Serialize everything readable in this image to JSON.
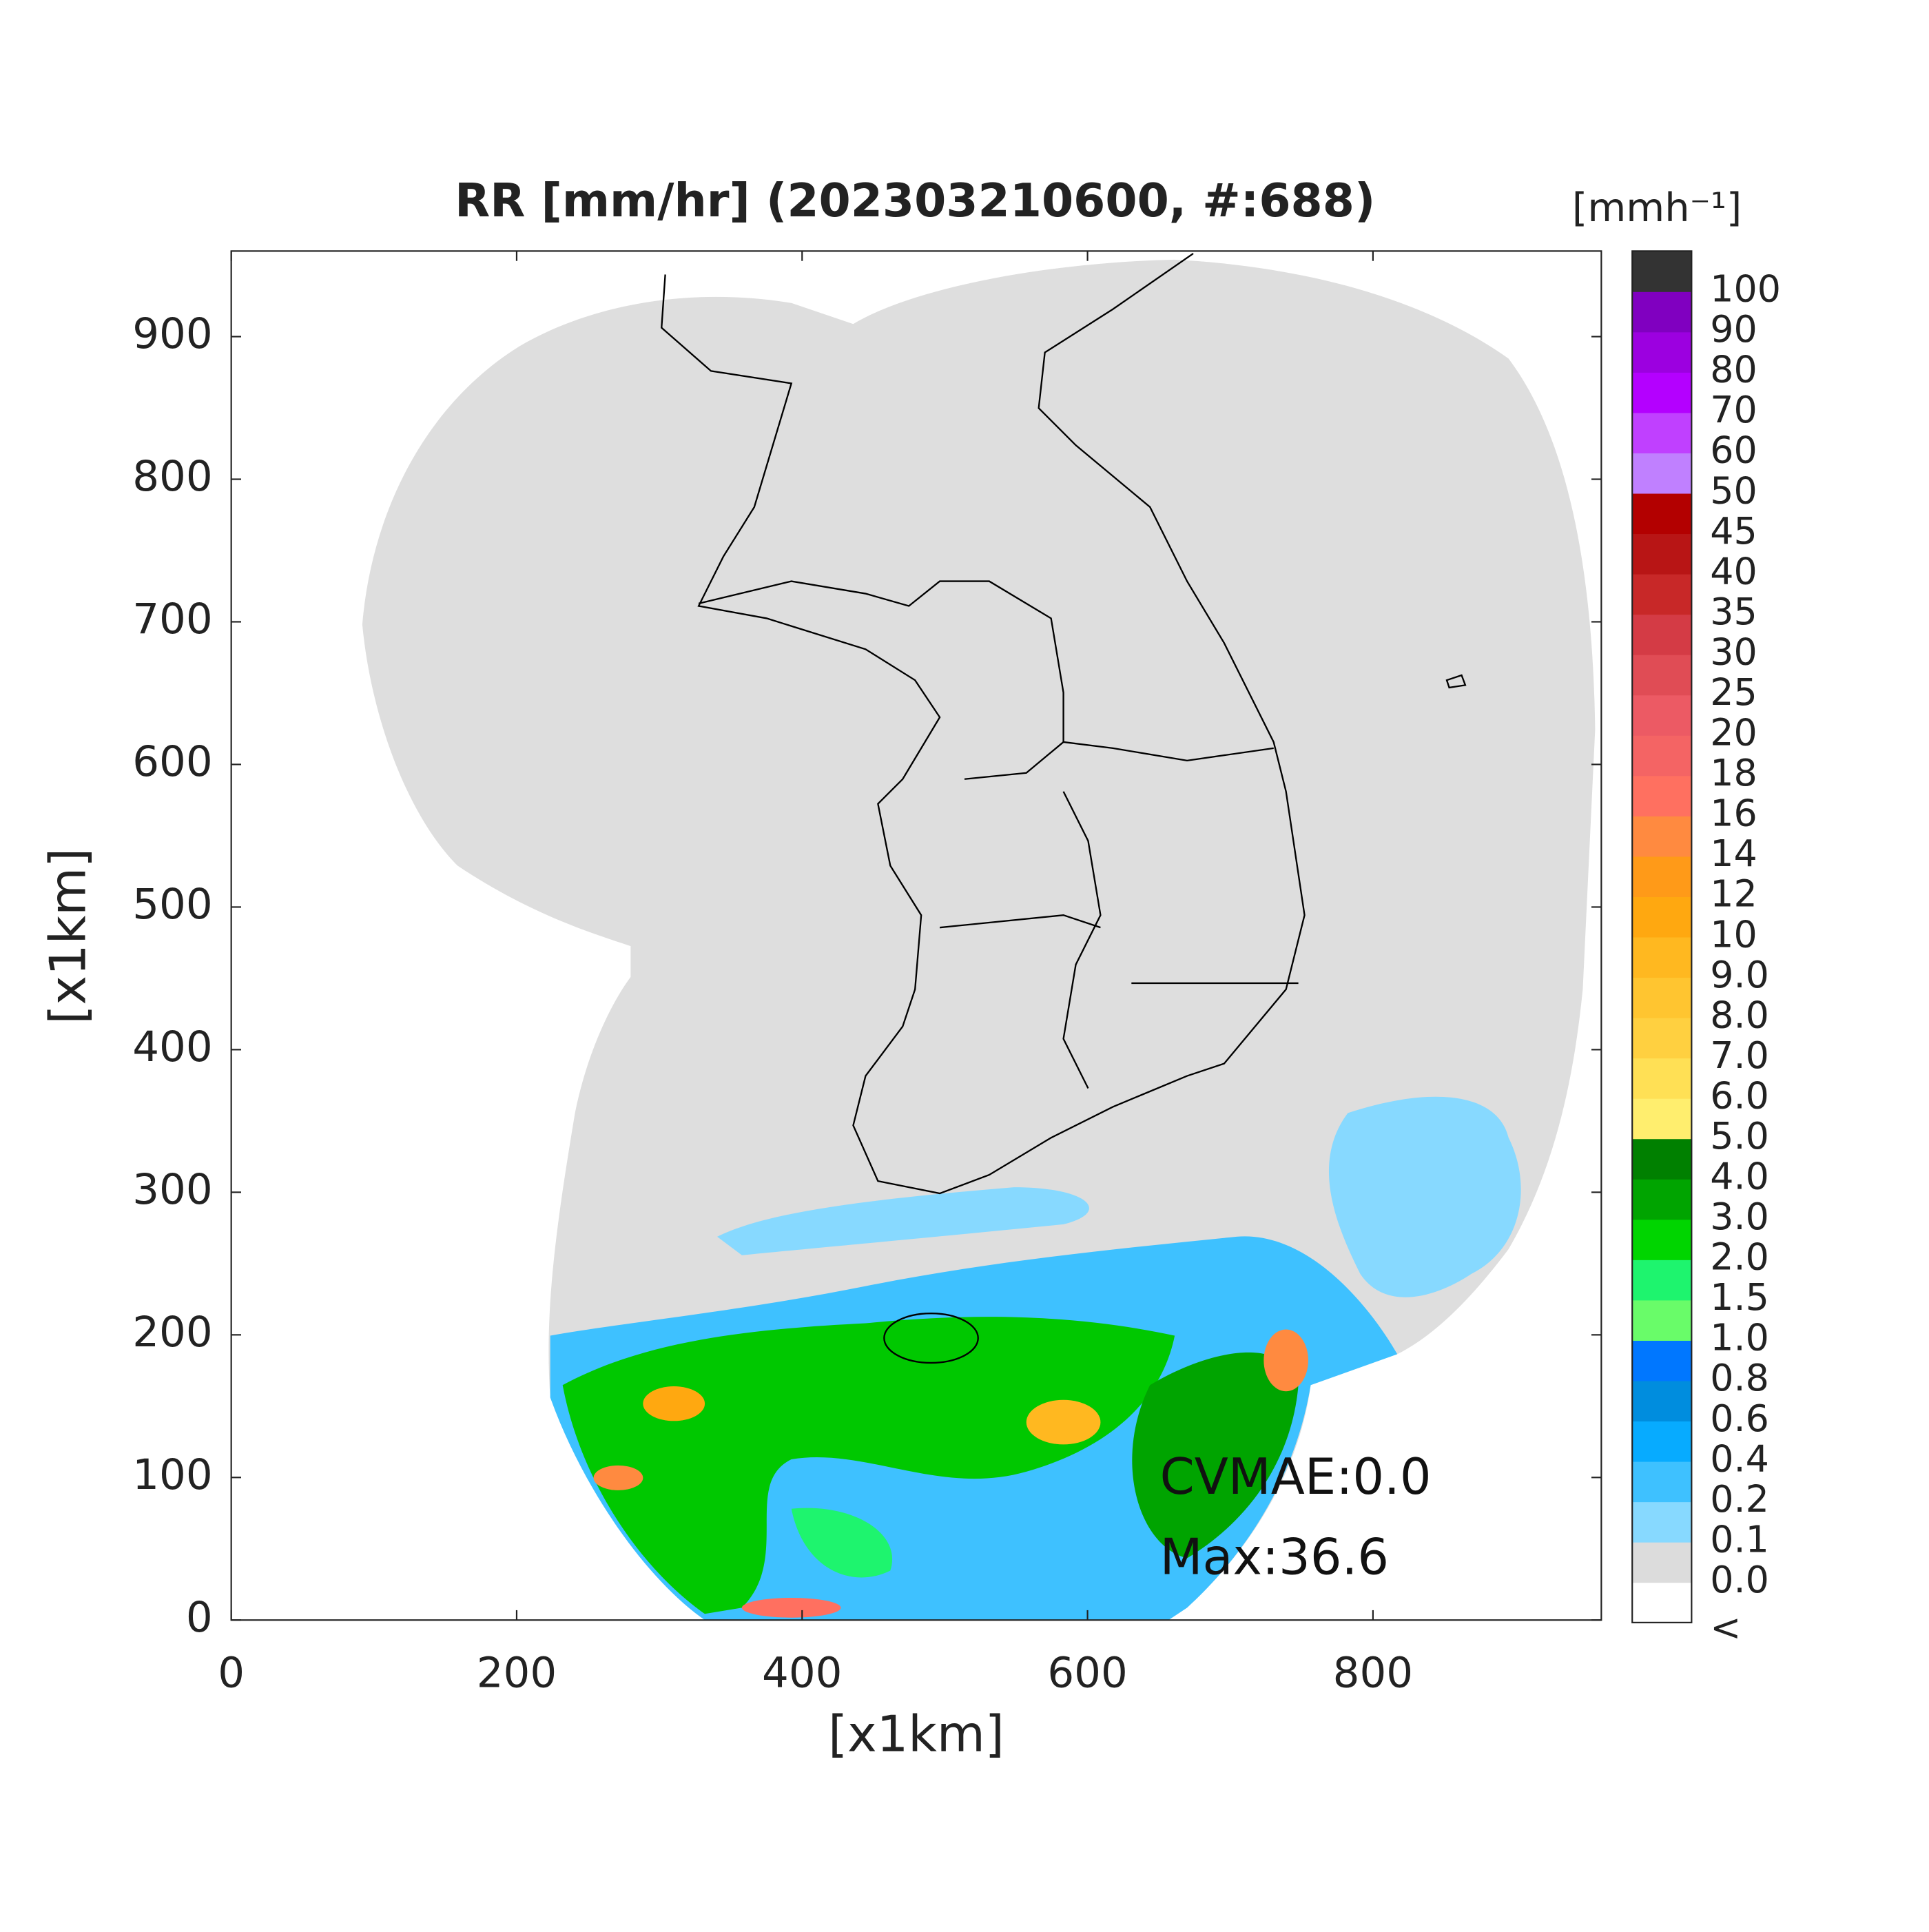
{
  "chart_data": {
    "type": "map",
    "title": "RR [mm/hr] (202303210600, #:688)",
    "x_label": "[x1km]",
    "y_label": "[x1km]",
    "xlim": [
      0,
      960
    ],
    "ylim": [
      0,
      960
    ],
    "xticks": [
      0,
      200,
      400,
      600,
      800
    ],
    "yticks": [
      0,
      100,
      200,
      300,
      400,
      500,
      600,
      700,
      800,
      900
    ],
    "annotations": [
      "CVMAE:0.0",
      "Max:36.6"
    ],
    "colorbar": {
      "label": "[mmh⁻¹]",
      "levels": [
        "<",
        "0.0",
        "0.1",
        "0.2",
        "0.4",
        "0.6",
        "0.8",
        "1.0",
        "1.5",
        "2.0",
        "3.0",
        "4.0",
        "5.0",
        "6.0",
        "7.0",
        "8.0",
        "9.0",
        "10",
        "12",
        "14",
        "16",
        "18",
        "20",
        "25",
        "30",
        "35",
        "40",
        "45",
        "50",
        "60",
        "70",
        "80",
        "90",
        "100"
      ],
      "colors": [
        "#ffffff",
        "#dcdcdc",
        "#87d9ff",
        "#3ec1ff",
        "#07abff",
        "#008dde",
        "#0077ff",
        "#69fc69",
        "#1ef46e",
        "#00d500",
        "#00a400",
        "#008000",
        "#ffee6e",
        "#ffe055",
        "#ffd040",
        "#ffc530",
        "#ffb820",
        "#ffa810",
        "#ff9a18",
        "#ff8a40",
        "#ff7060",
        "#f46464",
        "#ec5a64",
        "#e04c55",
        "#d43b45",
        "#c82828",
        "#b81515",
        "#b30000",
        "#c080ff",
        "#c040ff",
        "#b400ff",
        "#9c00e0",
        "#8000c0",
        "#333333"
      ]
    }
  }
}
